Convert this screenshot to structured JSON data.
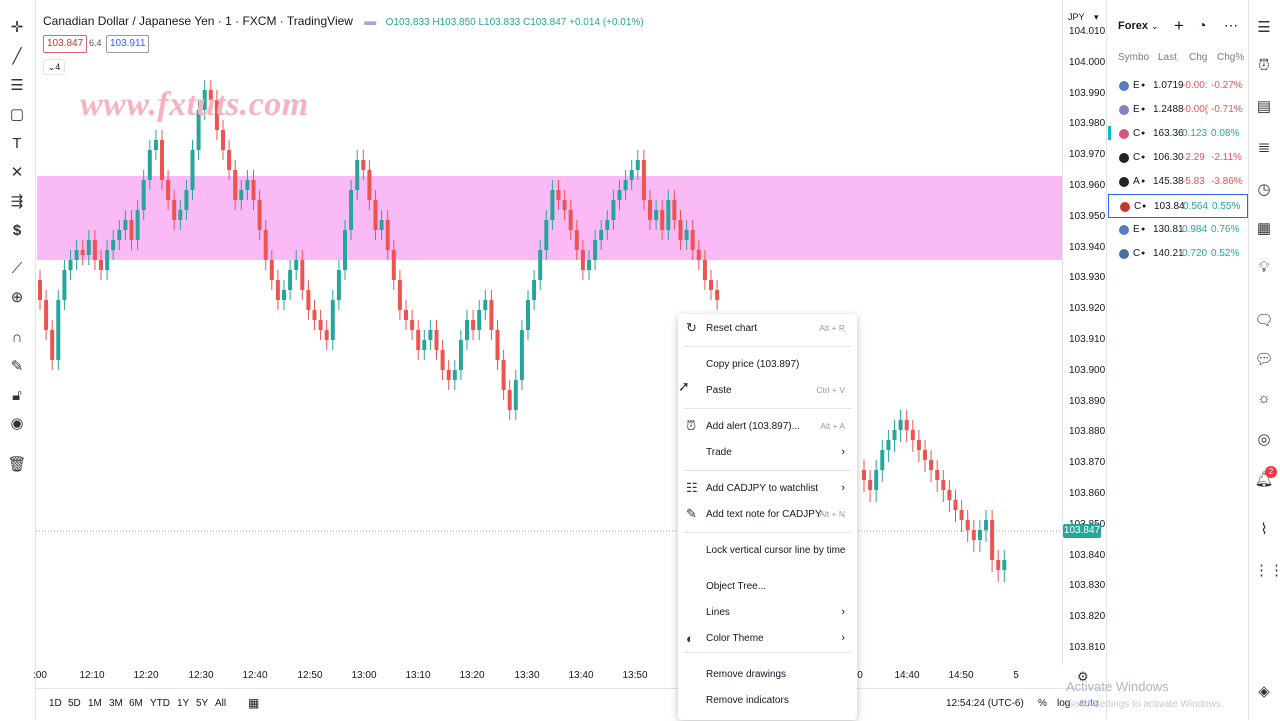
{
  "legend": {
    "symbol": "Canadian Dollar / Japanese Yen · 1 · FXCM · TradingView",
    "ohlc": "O103.833 H103.850 L103.833 C103.847 +0.014 (+0.01%)",
    "bid": "103.847",
    "spread": "6.4",
    "ask": "103.911",
    "indicators_toggle": "4"
  },
  "watermark": "www.fxtuts.com",
  "price_axis": {
    "currency": "JPY",
    "ticks": [
      "104.010",
      "104.000",
      "103.990",
      "103.980",
      "103.970",
      "103.960",
      "103.950",
      "103.940",
      "103.930",
      "103.920",
      "103.910",
      "103.900",
      "103.890",
      "103.880",
      "103.870",
      "103.860",
      "103.850",
      "103.840",
      "103.830",
      "103.820",
      "103.810"
    ],
    "current": "103.847"
  },
  "time_axis": {
    "ticks": [
      ":00",
      "12:10",
      "12:20",
      "12:30",
      "12:40",
      "12:50",
      "13:00",
      "13:10",
      "13:20",
      "13:30",
      "13:40",
      "13:50",
      "0",
      "14:40",
      "14:50",
      "5"
    ]
  },
  "bottom_bar": {
    "ranges": [
      "1D",
      "5D",
      "1M",
      "3M",
      "6M",
      "YTD",
      "1Y",
      "5Y",
      "All"
    ],
    "clock": "12:54:24 (UTC-6)",
    "pct": "%",
    "log": "log",
    "auto": "auto"
  },
  "context_menu": {
    "items": [
      {
        "label": "Reset chart",
        "shortcut": "Alt + R",
        "icon": "reset-icon"
      },
      {
        "label": "Copy price (103.897)",
        "shortcut": ""
      },
      {
        "label": "Paste",
        "shortcut": "Ctrl + V"
      },
      {
        "label": "Add alert (103.897)...",
        "shortcut": "Alt + A",
        "icon": "alarm-icon"
      },
      {
        "label": "Trade",
        "submenu": true
      },
      {
        "label": "Add CADJPY to watchlist",
        "submenu": true,
        "icon": "watchlist-icon"
      },
      {
        "label": "Add text note for CADJPY",
        "shortcut": "Alt + N",
        "icon": "note-icon"
      },
      {
        "label": "Lock vertical cursor line by time"
      },
      {
        "label": "Object Tree..."
      },
      {
        "label": "Lines",
        "submenu": true
      },
      {
        "label": "Color Theme",
        "submenu": true,
        "icon": "theme-icon"
      },
      {
        "label": "Remove drawings"
      },
      {
        "label": "Remove indicators"
      }
    ]
  },
  "watchlist": {
    "title": "Forex",
    "headers": [
      "Symbo",
      "Last",
      "Chg",
      "Chg%"
    ],
    "rows": [
      {
        "sym": "E",
        "last": "1.0719",
        "chg": "-0.00:",
        "pct": "-0.27%",
        "dir": "neg"
      },
      {
        "sym": "E",
        "last": "1.2488",
        "chg": "-0.00(",
        "pct": "-0.71%",
        "dir": "neg"
      },
      {
        "sym": "C",
        "last": "163.36",
        "chg": "0.123",
        "pct": "0.08%",
        "dir": "pos"
      },
      {
        "sym": "C",
        "last": "106.30",
        "chg": "-2.29",
        "pct": "-2.11%",
        "dir": "neg"
      },
      {
        "sym": "A",
        "last": "145.38",
        "chg": "-5.83",
        "pct": "-3.86%",
        "dir": "neg"
      },
      {
        "sym": "C",
        "last": "103.84",
        "chg": "0.564",
        "pct": "0.55%",
        "dir": "pos"
      },
      {
        "sym": "E",
        "last": "130.81",
        "chg": "0.984",
        "pct": "0.76%",
        "dir": "pos"
      },
      {
        "sym": "C",
        "last": "140.21",
        "chg": "0.720",
        "pct": "0.52%",
        "dir": "pos"
      }
    ]
  },
  "notifications_badge": "2",
  "activate_windows": {
    "title": "Activate Windows",
    "subtitle": "Go to Settings to activate Windows."
  },
  "colors": {
    "zone": "#f9b3f5",
    "up": "#26a69a",
    "down": "#ef5350",
    "selected_row_border": "#2962ff"
  }
}
